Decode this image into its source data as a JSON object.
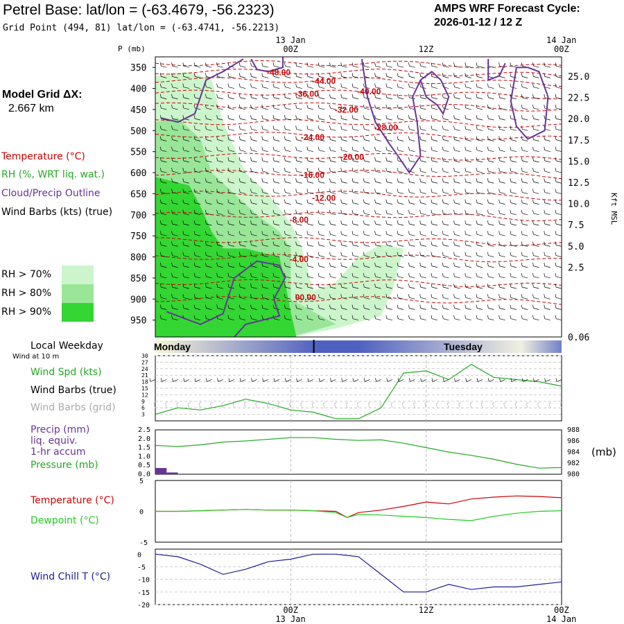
{
  "header": {
    "title": "Petrel Base:  lat/lon = (-63.4679, -56.2323)",
    "grid_point": "Grid Point (494, 81) lat/lon = (-63.4741, -56.2213)",
    "cycle_line1": "AMPS WRF Forecast Cycle:",
    "cycle_line2": "2026-01-12 / 12  Z"
  },
  "legend": {
    "model_grid": "Model Grid ΔX:",
    "model_dx": "2.667 km",
    "temperature": "Temperature (°C)",
    "rh": "RH (%, WRT liq. wat.)",
    "cloud": "Cloud/Precip Outline",
    "wind": "Wind Barbs (kts) (true)",
    "rh70": "RH > 70%",
    "rh80": "RH > 80%",
    "rh90": "RH > 90%",
    "local_weekday": "Local Weekday",
    "wind10m": "Wind at 10 m",
    "wind_spd": "Wind Spd (kts)",
    "wind_barbs_true": "Wind Barbs (true)",
    "wind_barbs_grid": "Wind Barbs (grid)",
    "precip": "Precip (mm)",
    "liq": "liq. equiv.",
    "accum": "1-hr accum",
    "pressure": "Pressure (mb)",
    "temp2": "Temperature (°C)",
    "dewpoint": "Dewpoint (°C)",
    "windchill": "Wind Chill T (°C)",
    "mb_unit": "(mb)",
    "p_axis_title": "P (mb)",
    "kft_axis_title": "Kft MSL"
  },
  "colors": {
    "temperature": "#cc0000",
    "rh": "#22aa22",
    "cloud": "#663399",
    "dewpoint": "#22cc22",
    "windchill": "#1a1a99",
    "precip": "#663399",
    "rh70": "#ccf5cc",
    "rh80": "#99e699",
    "rh90": "#33d633",
    "grid_barb": "#aaaaaa"
  },
  "chart_data": {
    "type": "meteogram",
    "time_axis": {
      "hours": [
        0,
        6,
        12,
        18,
        24,
        30,
        36,
        42,
        48
      ],
      "labeled": [
        {
          "hour": 12,
          "label": "00Z",
          "date": "13 Jan"
        },
        {
          "hour": 24,
          "label": "12Z",
          "date": ""
        },
        {
          "hour": 36,
          "label": "00Z",
          "date": "14 Jan"
        }
      ],
      "range_hours": [
        0,
        36
      ]
    },
    "weekday_bar": {
      "left": "Monday",
      "right": "Tuesday",
      "divider_hour": 13
    },
    "upper_panel": {
      "pressure_levels": [
        350,
        400,
        450,
        500,
        550,
        600,
        650,
        700,
        750,
        800,
        850,
        900,
        950
      ],
      "pressure_range": [
        325,
        990
      ],
      "height_ticks_kft": [
        25.0,
        22.5,
        20.0,
        17.5,
        15.0,
        12.5,
        10.0,
        7.5,
        5.0,
        2.5,
        0.06
      ],
      "temperature_contours": [
        {
          "value": "-48.00",
          "hour": 11,
          "p": 362
        },
        {
          "value": "-44.00",
          "hour": 15,
          "p": 383
        },
        {
          "value": "-40.00",
          "hour": 19,
          "p": 407
        },
        {
          "value": "-36.00",
          "hour": 13.5,
          "p": 413
        },
        {
          "value": "-32.00",
          "hour": 17,
          "p": 451
        },
        {
          "value": "-28.00",
          "hour": 20.5,
          "p": 493
        },
        {
          "value": "-24.00",
          "hour": 14,
          "p": 516
        },
        {
          "value": "-20.00",
          "hour": 17.5,
          "p": 563
        },
        {
          "value": "-16.00",
          "hour": 14,
          "p": 606
        },
        {
          "value": "-12.00",
          "hour": 15,
          "p": 660
        },
        {
          "value": "-8.00",
          "hour": 13,
          "p": 712
        },
        {
          "value": "-4.00",
          "hour": 13,
          "p": 806
        },
        {
          "value": "00.00",
          "hour": 13.5,
          "p": 896
        }
      ],
      "rh_regions": [
        {
          "level": "rh70",
          "points": [
            [
              0,
              370
            ],
            [
              3,
              360
            ],
            [
              5,
              380
            ],
            [
              6,
              480
            ],
            [
              8,
              600
            ],
            [
              10,
              650
            ],
            [
              12,
              720
            ],
            [
              13,
              780
            ],
            [
              14,
              880
            ],
            [
              16,
              860
            ],
            [
              18,
              800
            ],
            [
              20,
              770
            ],
            [
              22,
              780
            ],
            [
              21,
              880
            ],
            [
              20,
              940
            ],
            [
              16,
              970
            ],
            [
              12,
              990
            ],
            [
              0,
              990
            ]
          ]
        },
        {
          "level": "rh80",
          "points": [
            [
              0,
              480
            ],
            [
              2,
              470
            ],
            [
              4,
              520
            ],
            [
              5,
              600
            ],
            [
              7,
              650
            ],
            [
              9,
              700
            ],
            [
              11,
              740
            ],
            [
              12,
              780
            ],
            [
              12,
              900
            ],
            [
              14,
              930
            ],
            [
              16,
              960
            ],
            [
              12,
              990
            ],
            [
              0,
              990
            ]
          ]
        },
        {
          "level": "rh90",
          "points": [
            [
              0,
              610
            ],
            [
              3,
              630
            ],
            [
              4,
              680
            ],
            [
              5,
              740
            ],
            [
              6,
              780
            ],
            [
              8,
              780
            ],
            [
              11,
              800
            ],
            [
              11.5,
              860
            ],
            [
              12,
              930
            ],
            [
              12.5,
              990
            ],
            [
              0,
              990
            ]
          ]
        }
      ],
      "cloud_outlines": [
        {
          "points": [
            [
              8.5,
              330
            ],
            [
              9,
              355
            ],
            [
              10,
              360
            ],
            [
              11.3,
              350
            ],
            [
              11.3,
              325
            ]
          ]
        },
        {
          "points": [
            [
              7.8,
              330
            ],
            [
              6,
              360
            ],
            [
              4.5,
              380
            ],
            [
              4,
              420
            ],
            [
              3.5,
              460
            ],
            [
              2,
              480
            ],
            [
              0.5,
              470
            ]
          ]
        },
        {
          "points": [
            [
              18.3,
              330
            ],
            [
              18.8,
              420
            ],
            [
              19.5,
              480
            ],
            [
              20.7,
              530
            ],
            [
              21.5,
              560
            ],
            [
              22.5,
              600
            ],
            [
              23.5,
              560
            ],
            [
              23.2,
              480
            ],
            [
              22.8,
              420
            ],
            [
              23.5,
              380
            ],
            [
              24.5,
              360
            ],
            [
              25.3,
              380
            ],
            [
              26,
              420
            ],
            [
              25.5,
              460
            ],
            [
              25,
              440
            ],
            [
              24,
              420
            ],
            [
              23.5,
              380
            ]
          ]
        },
        {
          "points": [
            [
              29.5,
              330
            ],
            [
              29.5,
              380
            ],
            [
              30.5,
              370
            ],
            [
              31,
              340
            ]
          ]
        },
        {
          "points": [
            [
              32,
              350
            ],
            [
              31.5,
              430
            ],
            [
              32,
              490
            ],
            [
              33,
              520
            ],
            [
              34.5,
              500
            ],
            [
              34.8,
              420
            ],
            [
              34,
              360
            ],
            [
              33,
              350
            ],
            [
              32,
              350
            ]
          ]
        },
        {
          "points": [
            [
              1,
              930
            ],
            [
              4,
              960
            ],
            [
              6,
              935
            ],
            [
              7,
              850
            ],
            [
              9,
              810
            ],
            [
              11,
              820
            ],
            [
              11.5,
              850
            ],
            [
              10.5,
              900
            ],
            [
              11,
              940
            ],
            [
              8,
              960
            ],
            [
              7,
              990
            ]
          ]
        }
      ]
    },
    "wind_panel": {
      "ylabel": "Wind Spd (kts)",
      "yticks": [
        3,
        6,
        9,
        12,
        15,
        18,
        21,
        24,
        27,
        30
      ],
      "ylim": [
        0,
        30
      ],
      "hours": [
        0,
        2,
        4,
        6,
        8,
        10,
        12,
        14,
        16,
        18,
        20,
        22,
        24,
        26,
        28,
        30,
        32,
        34,
        36
      ],
      "speed": [
        3,
        6,
        5,
        7,
        10,
        8,
        5,
        4,
        1,
        1,
        6,
        22,
        23,
        19,
        26,
        20,
        19,
        18,
        16
      ]
    },
    "precip_pressure_panel": {
      "precip_label": "Precip (mm)",
      "precip_yticks": [
        0.0,
        0.5,
        1.0,
        1.5,
        2.0,
        2.5
      ],
      "precip_ylim": [
        0,
        2.5
      ],
      "precip_bars": [
        {
          "hour": 0.5,
          "value": 0.35
        },
        {
          "hour": 1.5,
          "value": 0.1
        }
      ],
      "pressure_label": "Pressure (mb)",
      "pressure_yticks": [
        980,
        982,
        984,
        986,
        988
      ],
      "pressure_ylim": [
        980,
        988
      ],
      "hours": [
        0,
        2,
        4,
        6,
        8,
        10,
        12,
        14,
        16,
        18,
        20,
        22,
        24,
        26,
        28,
        30,
        32,
        34,
        36
      ],
      "pressure": [
        985.2,
        985.0,
        985.3,
        985.8,
        986.0,
        986.3,
        986.6,
        986.6,
        986.3,
        986.1,
        986.2,
        985.6,
        984.8,
        984.0,
        983.4,
        982.7,
        981.8,
        981.1,
        981.2
      ]
    },
    "temp_panel": {
      "yticks": [
        5,
        0,
        -5
      ],
      "ylim": [
        -5,
        5
      ],
      "hours": [
        0,
        2,
        4,
        6,
        8,
        10,
        12,
        14,
        16,
        17,
        18,
        20,
        22,
        24,
        26,
        28,
        30,
        32,
        34,
        36
      ],
      "temperature": [
        0,
        0,
        0.1,
        0.2,
        0.3,
        0.2,
        0.2,
        0.1,
        0,
        -1.0,
        -0.2,
        0.2,
        0.8,
        1.5,
        1.2,
        2.0,
        2.3,
        2.5,
        2.4,
        2.2
      ],
      "dewpoint": [
        0,
        0,
        0.1,
        0.2,
        0.3,
        0.2,
        0.2,
        0.1,
        -0.2,
        -1.0,
        -0.5,
        -0.6,
        -0.8,
        -1.0,
        -1.3,
        -1.5,
        -0.8,
        -0.3,
        0,
        0.1
      ]
    },
    "windchill_panel": {
      "yticks": [
        0,
        -5,
        -10,
        -15,
        -20
      ],
      "ylim": [
        -20,
        2
      ],
      "hours": [
        0,
        2,
        4,
        6,
        8,
        10,
        12,
        14,
        16,
        18,
        20,
        22,
        24,
        26,
        28,
        30,
        32,
        34,
        36
      ],
      "windchill": [
        0,
        -1,
        -4,
        -8,
        -6,
        -3,
        -2,
        0,
        0,
        -1,
        -8,
        -15,
        -15,
        -12,
        -14,
        -13,
        -13,
        -12,
        -11
      ]
    }
  }
}
